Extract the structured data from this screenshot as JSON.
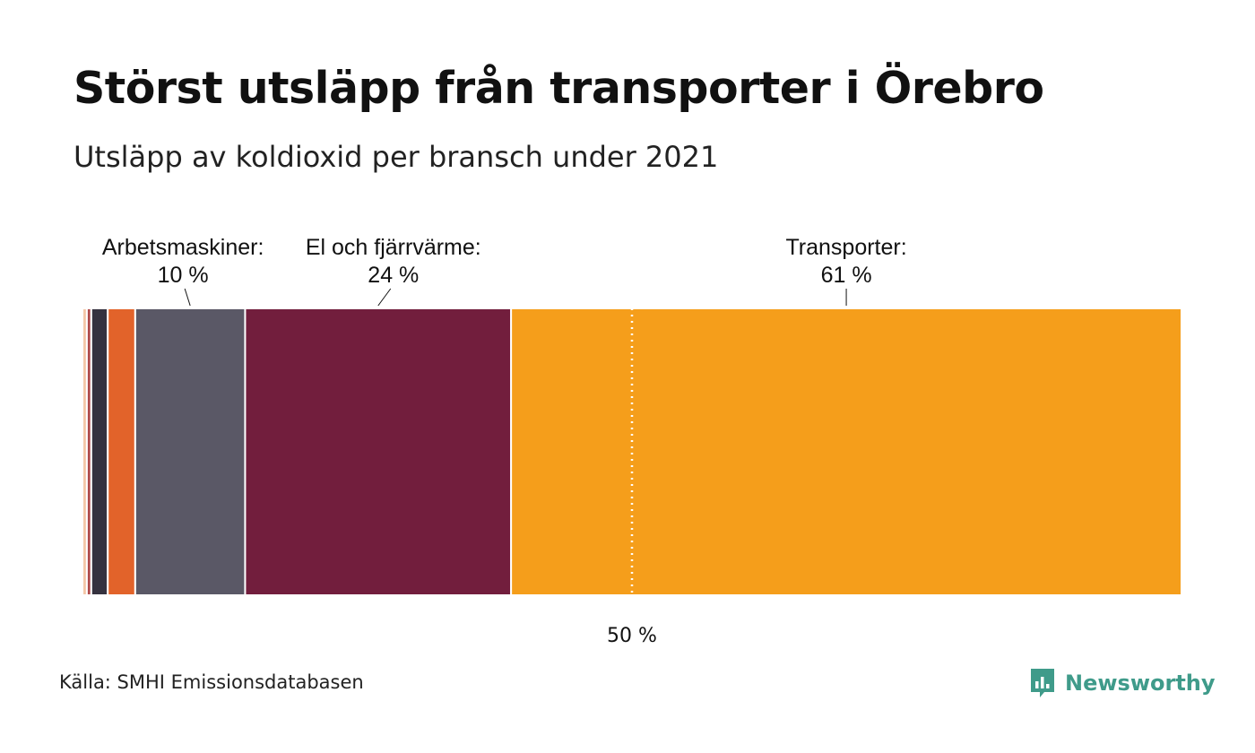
{
  "header": {
    "title": "Störst utsläpp från transporter i Örebro",
    "subtitle": "Utsläpp av koldioxid per bransch under 2021"
  },
  "footer": {
    "source": "Källa: SMHI Emissionsdatabasen",
    "brand": "Newsworthy",
    "brand_color": "#3f9b8a"
  },
  "chart_data": {
    "type": "bar",
    "orientation": "horizontal-stacked-100",
    "title": "Störst utsläpp från transporter i Örebro",
    "subtitle": "Utsläpp av koldioxid per bransch under 2021",
    "xlim": [
      0,
      100
    ],
    "reference_line": {
      "value": 50,
      "label": "50 %",
      "style": "dotted"
    },
    "segments": [
      {
        "value": 0.4,
        "color": "#f4c7a8",
        "label": "",
        "value_label": ""
      },
      {
        "value": 0.4,
        "color": "#b04a4a",
        "label": "",
        "value_label": ""
      },
      {
        "value": 1.5,
        "color": "#35323f",
        "label": "",
        "value_label": ""
      },
      {
        "value": 2.5,
        "color": "#e2632a",
        "label": "",
        "value_label": ""
      },
      {
        "value": 10,
        "color": "#5a5866",
        "label": "Arbetsmaskiner:",
        "value_label": "10 %"
      },
      {
        "value": 24.2,
        "color": "#721e3d",
        "label": "El och fjärrvärme:",
        "value_label": "24 %"
      },
      {
        "value": 61,
        "color": "#f59e1b",
        "label": "Transporter:",
        "value_label": "61 %"
      }
    ]
  }
}
